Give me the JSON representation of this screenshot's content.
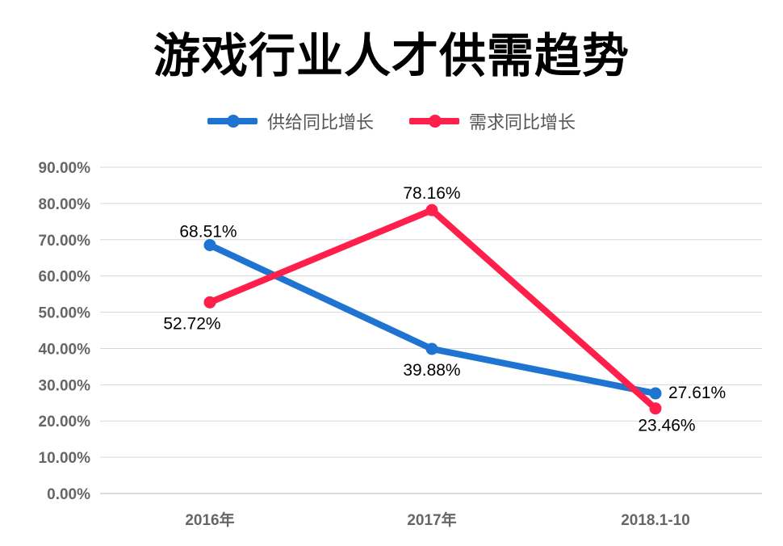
{
  "chart_data": {
    "type": "line",
    "title": "游戏行业人才供需趋势",
    "categories": [
      "2016年",
      "2017年",
      "2018.1-10"
    ],
    "series": [
      {
        "name": "供给同比增长",
        "color": "#1f74d1",
        "values": [
          68.51,
          39.88,
          27.61
        ],
        "labels": [
          "68.51%",
          "39.88%",
          "27.61%"
        ]
      },
      {
        "name": "需求同比增长",
        "color": "#ff1f4b",
        "values": [
          52.72,
          78.16,
          23.46
        ],
        "labels": [
          "52.72%",
          "78.16%",
          "23.46%"
        ]
      }
    ],
    "yticks": [
      "0.00%",
      "10.00%",
      "20.00%",
      "30.00%",
      "40.00%",
      "50.00%",
      "60.00%",
      "70.00%",
      "80.00%",
      "90.00%"
    ],
    "ylim": [
      0,
      90
    ],
    "grid": true,
    "legend_position": "top"
  }
}
